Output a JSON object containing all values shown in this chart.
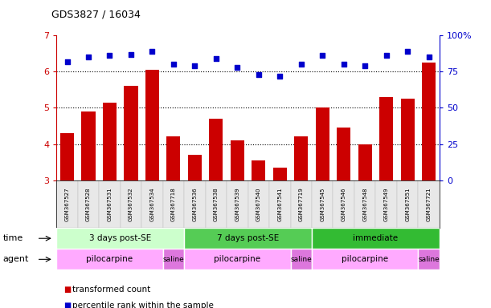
{
  "title": "GDS3827 / 16034",
  "samples": [
    "GSM367527",
    "GSM367528",
    "GSM367531",
    "GSM367532",
    "GSM367534",
    "GSM367718",
    "GSM367536",
    "GSM367538",
    "GSM367539",
    "GSM367540",
    "GSM367541",
    "GSM367719",
    "GSM367545",
    "GSM367546",
    "GSM367548",
    "GSM367549",
    "GSM367551",
    "GSM367721"
  ],
  "transformed_counts": [
    4.3,
    4.9,
    5.15,
    5.6,
    6.05,
    4.2,
    3.7,
    4.7,
    4.1,
    3.55,
    3.35,
    4.2,
    5.0,
    4.45,
    4.0,
    5.3,
    5.25,
    6.25
  ],
  "percentile_ranks": [
    82,
    85,
    86,
    87,
    89,
    80,
    79,
    84,
    78,
    73,
    72,
    80,
    86,
    80,
    79,
    86,
    89,
    85
  ],
  "bar_color": "#cc0000",
  "dot_color": "#0000cc",
  "ylim_left": [
    3,
    7
  ],
  "ylim_right": [
    0,
    100
  ],
  "yticks_left": [
    3,
    4,
    5,
    6,
    7
  ],
  "yticks_right": [
    0,
    25,
    50,
    75,
    100
  ],
  "ytick_right_labels": [
    "0",
    "25",
    "50",
    "75",
    "100%"
  ],
  "dotted_line_values": [
    4,
    5,
    6
  ],
  "time_groups": [
    {
      "label": "3 days post-SE",
      "start": 0,
      "end": 5,
      "color": "#ccffcc"
    },
    {
      "label": "7 days post-SE",
      "start": 6,
      "end": 11,
      "color": "#55cc55"
    },
    {
      "label": "immediate",
      "start": 12,
      "end": 17,
      "color": "#33bb33"
    }
  ],
  "agent_groups": [
    {
      "label": "pilocarpine",
      "start": 0,
      "end": 4,
      "color": "#ffaaff"
    },
    {
      "label": "saline",
      "start": 5,
      "end": 5,
      "color": "#dd77dd"
    },
    {
      "label": "pilocarpine",
      "start": 6,
      "end": 10,
      "color": "#ffaaff"
    },
    {
      "label": "saline",
      "start": 11,
      "end": 11,
      "color": "#dd77dd"
    },
    {
      "label": "pilocarpine",
      "start": 12,
      "end": 16,
      "color": "#ffaaff"
    },
    {
      "label": "saline",
      "start": 17,
      "end": 17,
      "color": "#dd77dd"
    }
  ],
  "legend_red_label": "transformed count",
  "legend_blue_label": "percentile rank within the sample",
  "bg_color": "#ffffff",
  "base_value": 3.0,
  "bar_width": 0.65
}
